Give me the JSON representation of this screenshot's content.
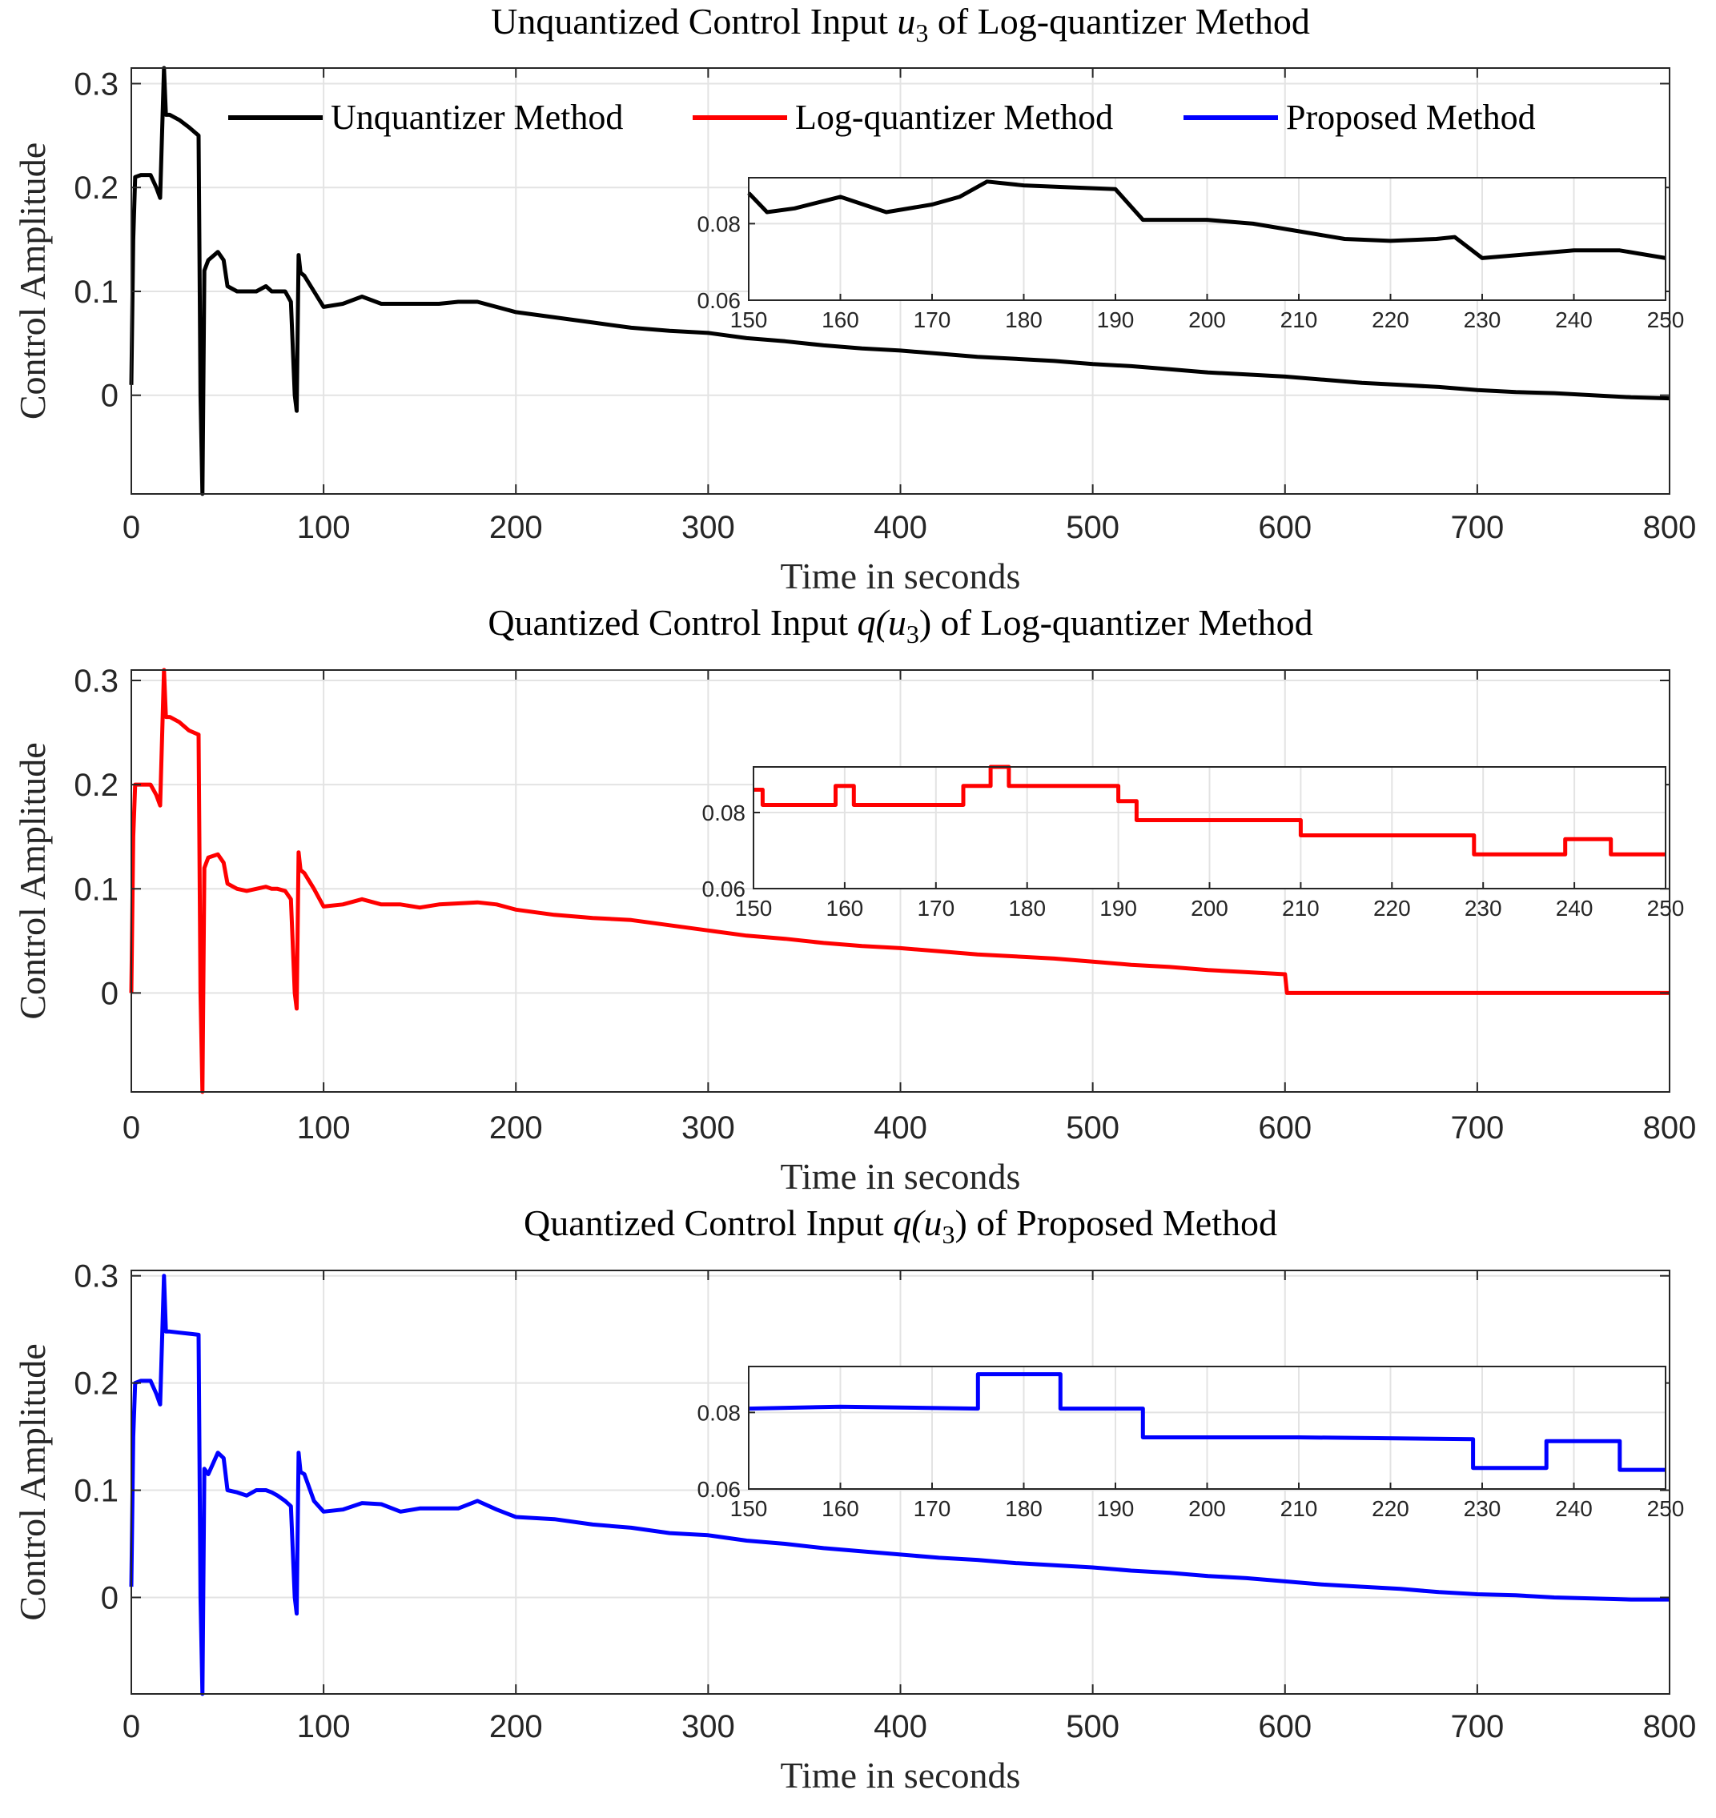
{
  "legend": {
    "placement": "top-right of first panel",
    "entries": [
      {
        "label": "Unquantizer Method",
        "color": "#000000"
      },
      {
        "label": "Log-quantizer Method",
        "color": "#ff0000"
      },
      {
        "label": "Proposed Method",
        "color": "#0000ff"
      }
    ]
  },
  "chart_data": [
    {
      "type": "line",
      "title": {
        "pre": "Unquantized Control Input ",
        "math": "u",
        "sub": "3",
        "post": " of Log-quantizer Method"
      },
      "xlabel": "Time in seconds",
      "ylabel": "Control Amplitude",
      "xlim": [
        0,
        800
      ],
      "ylim": [
        -0.095,
        0.315
      ],
      "xticks": [
        "0",
        "100",
        "200",
        "300",
        "400",
        "500",
        "600",
        "700",
        "800"
      ],
      "yticks": [
        "0",
        "0.1",
        "0.2",
        "0.3"
      ],
      "grid": true,
      "color": "#000000",
      "series_name": "Unquantizer Method",
      "x": [
        0,
        1,
        2,
        5,
        10,
        13,
        15,
        17,
        18,
        20,
        25,
        30,
        35,
        36,
        37,
        38,
        40,
        45,
        48,
        50,
        55,
        60,
        65,
        70,
        73,
        76,
        80,
        83,
        85,
        86,
        87,
        88,
        90,
        95,
        100,
        110,
        120,
        130,
        140,
        150,
        160,
        170,
        180,
        190,
        200,
        220,
        240,
        260,
        280,
        300,
        320,
        340,
        360,
        380,
        400,
        420,
        440,
        460,
        480,
        500,
        520,
        540,
        560,
        580,
        600,
        620,
        640,
        660,
        680,
        700,
        720,
        740,
        760,
        780,
        800
      ],
      "y": [
        0.01,
        0.15,
        0.21,
        0.212,
        0.212,
        0.2,
        0.19,
        0.315,
        0.27,
        0.27,
        0.265,
        0.258,
        0.25,
        0.0,
        -0.095,
        0.12,
        0.13,
        0.138,
        0.13,
        0.105,
        0.1,
        0.1,
        0.1,
        0.105,
        0.1,
        0.1,
        0.1,
        0.09,
        0.0,
        -0.015,
        0.135,
        0.118,
        0.115,
        0.1,
        0.085,
        0.088,
        0.095,
        0.088,
        0.088,
        0.088,
        0.088,
        0.09,
        0.09,
        0.085,
        0.08,
        0.075,
        0.07,
        0.065,
        0.062,
        0.06,
        0.055,
        0.052,
        0.048,
        0.045,
        0.043,
        0.04,
        0.037,
        0.035,
        0.033,
        0.03,
        0.028,
        0.025,
        0.022,
        0.02,
        0.018,
        0.015,
        0.012,
        0.01,
        0.008,
        0.005,
        0.003,
        0.002,
        0.0,
        -0.002,
        -0.003
      ],
      "inset": {
        "xlim": [
          150,
          250
        ],
        "ylim": [
          0.06,
          0.092
        ],
        "xticks": [
          "150",
          "160",
          "170",
          "180",
          "190",
          "200",
          "210",
          "220",
          "230",
          "240",
          "250"
        ],
        "yticks": [
          "0.06",
          "0.08"
        ],
        "x": [
          150,
          152,
          155,
          160,
          165,
          170,
          173,
          176,
          180,
          185,
          190,
          193,
          200,
          205,
          210,
          215,
          220,
          225,
          227,
          230,
          235,
          240,
          245,
          250
        ],
        "y": [
          0.088,
          0.083,
          0.084,
          0.087,
          0.083,
          0.085,
          0.087,
          0.091,
          0.09,
          0.0895,
          0.089,
          0.081,
          0.081,
          0.08,
          0.078,
          0.076,
          0.0755,
          0.076,
          0.0765,
          0.071,
          0.072,
          0.073,
          0.073,
          0.071
        ]
      }
    },
    {
      "type": "line",
      "title": {
        "pre": "Quantized Control Input ",
        "math": "q(u",
        "sub": "3",
        "post": ") of Log-quantizer Method"
      },
      "xlabel": "Time in seconds",
      "ylabel": "Control Amplitude",
      "xlim": [
        0,
        800
      ],
      "ylim": [
        -0.095,
        0.31
      ],
      "xticks": [
        "0",
        "100",
        "200",
        "300",
        "400",
        "500",
        "600",
        "700",
        "800"
      ],
      "yticks": [
        "0",
        "0.1",
        "0.2",
        "0.3"
      ],
      "grid": true,
      "color": "#ff0000",
      "series_name": "Log-quantizer Method",
      "x": [
        0,
        1,
        2,
        5,
        10,
        13,
        15,
        17,
        18,
        20,
        25,
        30,
        35,
        36,
        37,
        38,
        40,
        45,
        48,
        50,
        55,
        60,
        65,
        70,
        73,
        76,
        80,
        83,
        85,
        86,
        87,
        88,
        90,
        95,
        100,
        110,
        120,
        130,
        140,
        150,
        160,
        170,
        180,
        190,
        200,
        220,
        240,
        260,
        280,
        300,
        320,
        340,
        360,
        380,
        400,
        420,
        440,
        460,
        480,
        500,
        520,
        540,
        560,
        580,
        600,
        601,
        620,
        640,
        660,
        680,
        700,
        720,
        740,
        760,
        780,
        800
      ],
      "y": [
        0.0,
        0.15,
        0.2,
        0.2,
        0.2,
        0.19,
        0.18,
        0.31,
        0.265,
        0.265,
        0.26,
        0.252,
        0.248,
        0.0,
        -0.095,
        0.12,
        0.13,
        0.133,
        0.125,
        0.105,
        0.1,
        0.098,
        0.1,
        0.102,
        0.1,
        0.1,
        0.098,
        0.09,
        0.0,
        -0.015,
        0.135,
        0.118,
        0.115,
        0.1,
        0.083,
        0.085,
        0.09,
        0.085,
        0.085,
        0.082,
        0.085,
        0.086,
        0.087,
        0.085,
        0.08,
        0.075,
        0.072,
        0.07,
        0.065,
        0.06,
        0.055,
        0.052,
        0.048,
        0.045,
        0.043,
        0.04,
        0.037,
        0.035,
        0.033,
        0.03,
        0.027,
        0.025,
        0.022,
        0.02,
        0.018,
        0.0,
        0.0,
        0.0,
        0.0,
        0.0,
        0.0,
        0.0,
        0.0,
        0.0,
        0.0,
        0.0
      ],
      "inset": {
        "xlim": [
          150,
          250
        ],
        "ylim": [
          0.06,
          0.092
        ],
        "xticks": [
          "150",
          "160",
          "170",
          "180",
          "190",
          "200",
          "210",
          "220",
          "230",
          "240",
          "250"
        ],
        "yticks": [
          "0.06",
          "0.08"
        ],
        "x": [
          150,
          151,
          151,
          159,
          159,
          161,
          161,
          173,
          173,
          176,
          176,
          178,
          178,
          190,
          190,
          192,
          192,
          210,
          210,
          229,
          229,
          239,
          239,
          244,
          244,
          250
        ],
        "y": [
          0.086,
          0.086,
          0.082,
          0.082,
          0.087,
          0.087,
          0.082,
          0.082,
          0.087,
          0.087,
          0.092,
          0.092,
          0.087,
          0.087,
          0.083,
          0.083,
          0.078,
          0.078,
          0.074,
          0.074,
          0.069,
          0.069,
          0.073,
          0.073,
          0.069,
          0.069
        ]
      }
    },
    {
      "type": "line",
      "title": {
        "pre": "Quantized Control Input ",
        "math": "q(u",
        "sub": "3",
        "post": ") of Proposed Method"
      },
      "xlabel": "Time in seconds",
      "ylabel": "Control Amplitude",
      "xlim": [
        0,
        800
      ],
      "ylim": [
        -0.09,
        0.305
      ],
      "xticks": [
        "0",
        "100",
        "200",
        "300",
        "400",
        "500",
        "600",
        "700",
        "800"
      ],
      "yticks": [
        "0",
        "0.1",
        "0.2",
        "0.3"
      ],
      "grid": true,
      "color": "#0000ff",
      "series_name": "Proposed Method",
      "x": [
        0,
        1,
        2,
        5,
        10,
        13,
        15,
        17,
        18,
        20,
        25,
        30,
        35,
        36,
        37,
        38,
        40,
        45,
        48,
        50,
        55,
        60,
        65,
        70,
        73,
        76,
        80,
        83,
        85,
        86,
        87,
        88,
        90,
        95,
        100,
        110,
        120,
        130,
        140,
        150,
        160,
        170,
        180,
        190,
        200,
        220,
        240,
        260,
        280,
        300,
        320,
        340,
        360,
        380,
        400,
        420,
        440,
        460,
        480,
        500,
        520,
        540,
        560,
        580,
        600,
        620,
        640,
        660,
        680,
        700,
        720,
        740,
        760,
        780,
        800
      ],
      "y": [
        0.01,
        0.15,
        0.2,
        0.202,
        0.202,
        0.19,
        0.18,
        0.3,
        0.248,
        0.248,
        0.247,
        0.246,
        0.245,
        0.0,
        -0.09,
        0.12,
        0.115,
        0.135,
        0.13,
        0.1,
        0.098,
        0.095,
        0.1,
        0.1,
        0.098,
        0.095,
        0.09,
        0.085,
        0.0,
        -0.015,
        0.135,
        0.117,
        0.115,
        0.09,
        0.08,
        0.082,
        0.088,
        0.087,
        0.08,
        0.083,
        0.083,
        0.083,
        0.09,
        0.082,
        0.075,
        0.073,
        0.068,
        0.065,
        0.06,
        0.058,
        0.053,
        0.05,
        0.046,
        0.043,
        0.04,
        0.037,
        0.035,
        0.032,
        0.03,
        0.028,
        0.025,
        0.023,
        0.02,
        0.018,
        0.015,
        0.012,
        0.01,
        0.008,
        0.005,
        0.003,
        0.002,
        0.0,
        -0.001,
        -0.002,
        -0.002
      ],
      "inset": {
        "xlim": [
          150,
          250
        ],
        "ylim": [
          0.06,
          0.092
        ],
        "xticks": [
          "150",
          "160",
          "170",
          "180",
          "190",
          "200",
          "210",
          "220",
          "230",
          "240",
          "250"
        ],
        "yticks": [
          "0.06",
          "0.08"
        ],
        "x": [
          150,
          160,
          175,
          175,
          184,
          184,
          193,
          193,
          210,
          229,
          229,
          237,
          237,
          245,
          245,
          250
        ],
        "y": [
          0.081,
          0.0815,
          0.081,
          0.09,
          0.09,
          0.081,
          0.081,
          0.0735,
          0.0735,
          0.073,
          0.0655,
          0.0655,
          0.0725,
          0.0725,
          0.065,
          0.065
        ]
      }
    }
  ]
}
